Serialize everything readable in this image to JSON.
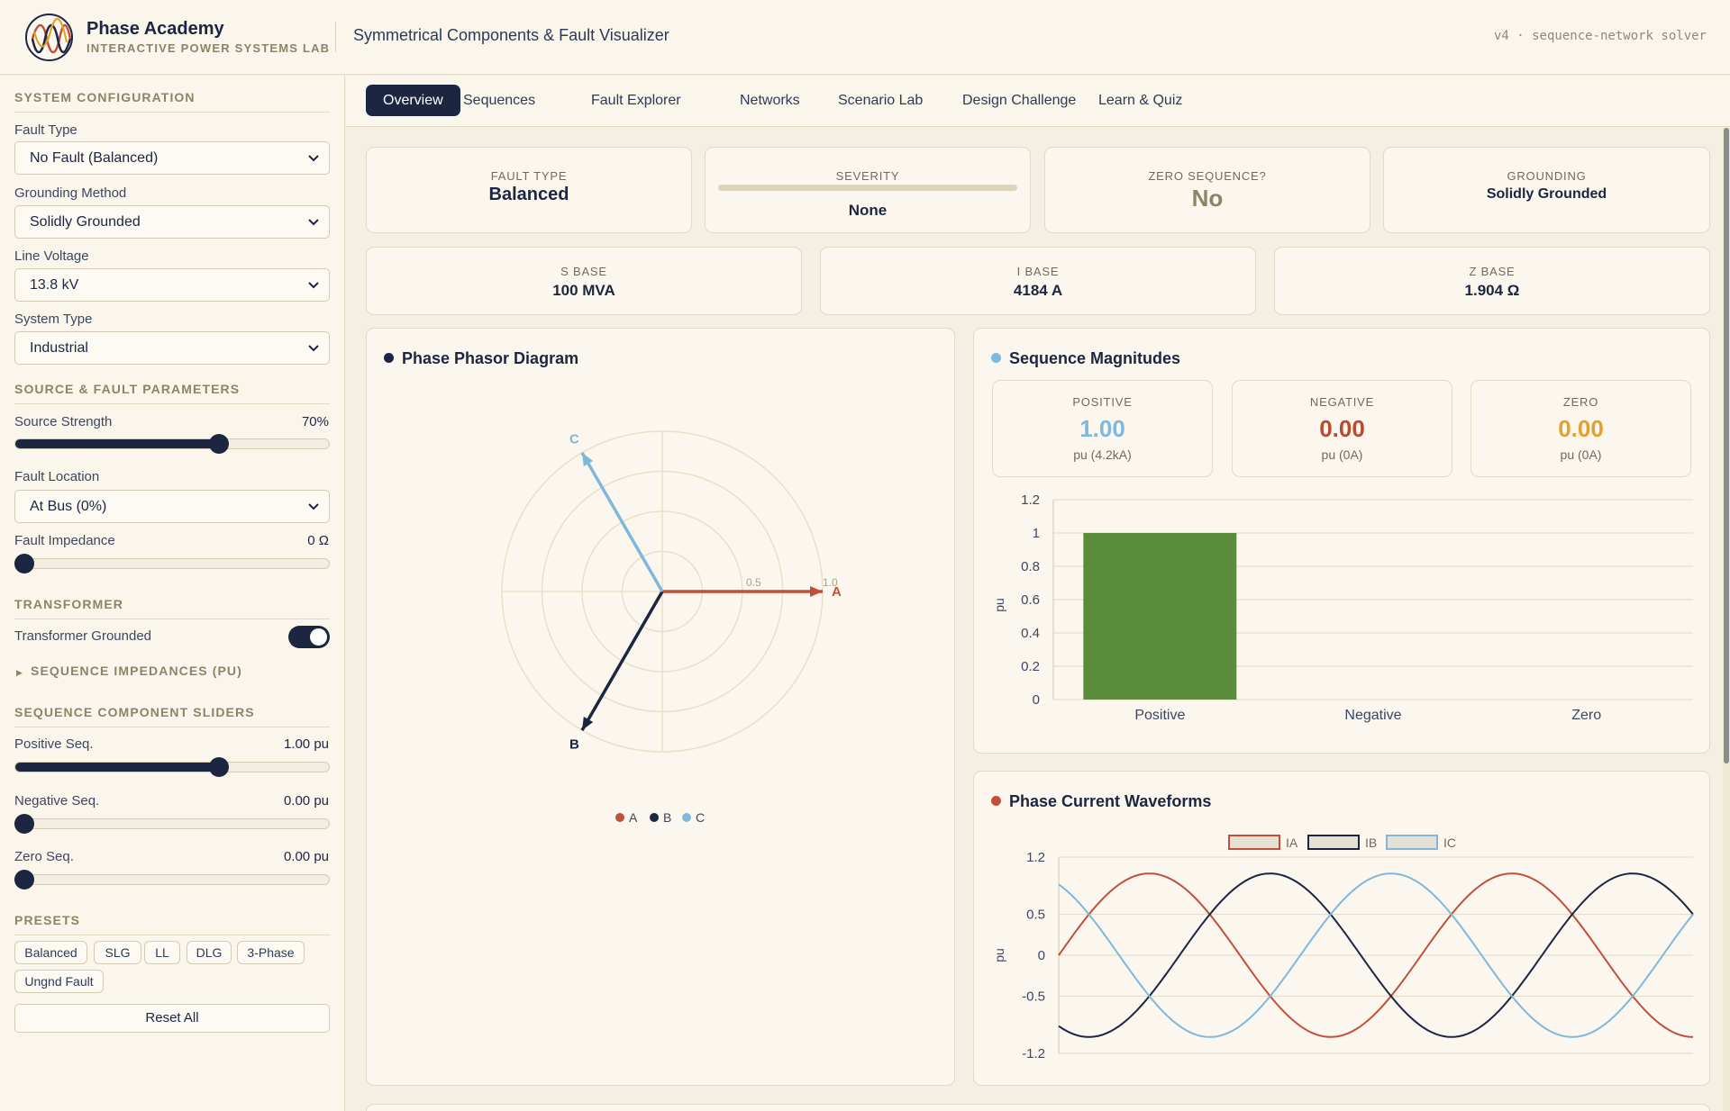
{
  "header": {
    "brand_name": "Phase Academy",
    "brand_subtitle": "INTERACTIVE POWER SYSTEMS LAB",
    "app_title": "Symmetrical Components & Fault Visualizer",
    "version": "v4 · sequence-network solver"
  },
  "sidebar": {
    "system_config_title": "SYSTEM CONFIGURATION",
    "fault_type_label": "Fault Type",
    "fault_type_value": "No Fault (Balanced)",
    "grounding_label": "Grounding Method",
    "grounding_value": "Solidly Grounded",
    "line_voltage_label": "Line Voltage",
    "line_voltage_value": "13.8 kV",
    "system_type_label": "System Type",
    "system_type_value": "Industrial",
    "source_fault_title": "SOURCE & FAULT PARAMETERS",
    "source_strength_label": "Source Strength",
    "source_strength_value": "70%",
    "source_strength_level": 0.655,
    "fault_location_label": "Fault Location",
    "fault_location_value": "At Bus (0%)",
    "fault_impedance_label": "Fault Impedance",
    "fault_impedance_value": "0 Ω",
    "fault_impedance_level": 0,
    "transformer_title": "TRANSFORMER",
    "transformer_grounded_label": "Transformer Grounded",
    "transformer_grounded_on": true,
    "seq_impedances_label": "SEQUENCE IMPEDANCES (PU)",
    "seq_sliders_title": "SEQUENCE COMPONENT SLIDERS",
    "positive_label": "Positive Seq.",
    "positive_value": "1.00 pu",
    "positive_level": 0.655,
    "negative_label": "Negative Seq.",
    "negative_value": "0.00 pu",
    "negative_level": 0,
    "zero_label": "Zero Seq.",
    "zero_value": "0.00 pu",
    "zero_level": 0,
    "presets_title": "PRESETS",
    "presets": [
      "Balanced",
      "SLG",
      "LL",
      "DLG",
      "3-Phase",
      "Ungnd Fault"
    ],
    "reset_label": "Reset All"
  },
  "tabs": [
    "Overview",
    "Sequences",
    "Fault Explorer",
    "Networks",
    "Scenario Lab",
    "Design Challenge",
    "Learn & Quiz"
  ],
  "active_tab": "Overview",
  "summary": {
    "fault_type_label": "FAULT TYPE",
    "fault_type_value": "Balanced",
    "severity_label": "SEVERITY",
    "severity_value": "None",
    "zero_seq_label": "ZERO SEQUENCE?",
    "zero_seq_value": "No",
    "grounding_label": "GROUNDING",
    "grounding_value": "Solidly Grounded",
    "s_base_label": "S BASE",
    "s_base_value": "100 MVA",
    "i_base_label": "I BASE",
    "i_base_value": "4184 A",
    "z_base_label": "Z BASE",
    "z_base_value": "1.904 Ω"
  },
  "phasor": {
    "title": "Phase Phasor Diagram",
    "ring_label_mid": "0.5",
    "ring_label_outer": "1.0",
    "legend": [
      "A",
      "B",
      "C"
    ]
  },
  "sequence": {
    "title": "Sequence Magnitudes",
    "cards": [
      {
        "label": "POSITIVE",
        "value": "1.00",
        "sub": "pu (4.2kA)"
      },
      {
        "label": "NEGATIVE",
        "value": "0.00",
        "sub": "pu (0A)"
      },
      {
        "label": "ZERO",
        "value": "0.00",
        "sub": "pu (0A)"
      }
    ]
  },
  "waveform": {
    "title": "Phase Current Waveforms"
  },
  "colors": {
    "navy": "#1c2640",
    "phase_a": "#c0503a",
    "phase_b": "#1c2640",
    "phase_c": "#7fb8dc",
    "positive": "#7fb8dc",
    "negative": "#b84a32",
    "zero": "#e3a12a",
    "bar_green": "#5b8c3c"
  },
  "chart_data": [
    {
      "type": "line",
      "title": "Phase Phasor Diagram",
      "note": "polar phasor plot",
      "series": [
        {
          "name": "A",
          "magnitude": 1.0,
          "angle_deg": 0
        },
        {
          "name": "B",
          "magnitude": 1.0,
          "angle_deg": -120
        },
        {
          "name": "C",
          "magnitude": 1.0,
          "angle_deg": 120
        }
      ],
      "radial_ticks": [
        0.5,
        1.0
      ],
      "legend_position": "bottom"
    },
    {
      "type": "bar",
      "title": "Sequence Magnitudes",
      "categories": [
        "Positive",
        "Negative",
        "Zero"
      ],
      "values": [
        1.0,
        0.0,
        0.0
      ],
      "ylabel": "pu",
      "ylim": [
        0,
        1.2
      ],
      "yticks": [
        0,
        0.2,
        0.4,
        0.6,
        0.8,
        1.0,
        1.2
      ],
      "grid": true
    },
    {
      "type": "line",
      "title": "Phase Current Waveforms",
      "ylabel": "pu",
      "ylim": [
        -1.2,
        1.2
      ],
      "yticks": [
        -1.2,
        -0.5,
        0,
        0.5,
        1.2
      ],
      "series": [
        {
          "name": "IA",
          "amplitude": 1.0,
          "phase_deg": 0
        },
        {
          "name": "IB",
          "amplitude": 1.0,
          "phase_deg": -120
        },
        {
          "name": "IC",
          "amplitude": 1.0,
          "phase_deg": 120
        }
      ],
      "x_range_cycles": [
        0,
        1.75
      ],
      "legend_position": "top",
      "grid": true
    }
  ]
}
